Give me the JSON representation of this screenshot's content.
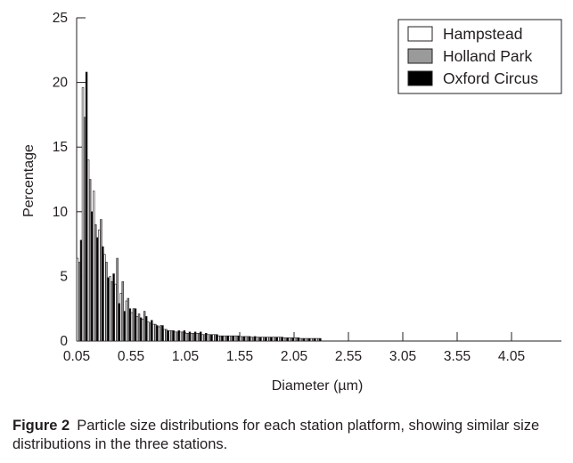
{
  "chart_data": {
    "type": "bar",
    "xlabel": "Diameter (µm)",
    "ylabel": "Percentage",
    "ylim": [
      0,
      25
    ],
    "yticks": [
      0,
      5,
      10,
      15,
      20,
      25
    ],
    "xticks": [
      0.05,
      0.55,
      1.05,
      1.55,
      2.05,
      2.55,
      3.05,
      3.55,
      4.05
    ],
    "xtick_labels": [
      "0.05",
      "0.55",
      "1.05",
      "1.55",
      "2.05",
      "2.55",
      "3.05",
      "3.55",
      "4.05"
    ],
    "bin_start": 0.05,
    "bin_width": 0.05,
    "legend_position": "top-right",
    "series": [
      {
        "name": "Hampstead",
        "color": "#ffffff",
        "values": [
          6.4,
          19.6,
          14.0,
          11.6,
          8.6,
          6.7,
          5.0,
          4.4,
          3.7,
          3.1,
          2.2,
          1.9,
          1.7,
          1.5,
          1.3,
          1.1,
          0.9,
          0.8,
          0.7,
          0.7,
          0.6,
          0.6,
          0.6,
          0.5,
          0.5,
          0.5,
          0.4,
          0.4,
          0.4,
          0.4,
          0.35,
          0.35,
          0.3,
          0.3,
          0.3,
          0.3,
          0.3,
          0.3,
          0.25,
          0.25,
          0.25,
          0.2,
          0.2,
          0.2,
          0.2
        ]
      },
      {
        "name": "Holland Park",
        "color": "#9a9a9a",
        "values": [
          6.1,
          17.3,
          12.5,
          9.0,
          9.4,
          6.1,
          4.6,
          6.4,
          4.6,
          3.3,
          2.5,
          2.1,
          2.3,
          1.4,
          1.3,
          1.2,
          0.9,
          0.8,
          0.7,
          0.7,
          0.6,
          0.6,
          0.6,
          0.5,
          0.5,
          0.5,
          0.4,
          0.4,
          0.4,
          0.4,
          0.35,
          0.35,
          0.3,
          0.3,
          0.3,
          0.3,
          0.3,
          0.3,
          0.25,
          0.25,
          0.25,
          0.2,
          0.2,
          0.2,
          0.2
        ]
      },
      {
        "name": "Oxford Circus",
        "color": "#000000",
        "values": [
          7.8,
          20.8,
          10.0,
          8.0,
          7.3,
          4.9,
          5.2,
          2.9,
          2.3,
          2.5,
          2.5,
          1.8,
          1.9,
          1.6,
          1.2,
          1.2,
          0.8,
          0.8,
          0.8,
          0.8,
          0.7,
          0.7,
          0.7,
          0.6,
          0.5,
          0.5,
          0.4,
          0.4,
          0.4,
          0.4,
          0.35,
          0.35,
          0.35,
          0.3,
          0.3,
          0.3,
          0.3,
          0.3,
          0.25,
          0.25,
          0.25,
          0.2,
          0.2,
          0.2,
          0.2
        ]
      }
    ]
  },
  "caption": {
    "label": "Figure 2",
    "text": "Particle size distributions for each station platform, showing similar size distributions in the three stations."
  }
}
